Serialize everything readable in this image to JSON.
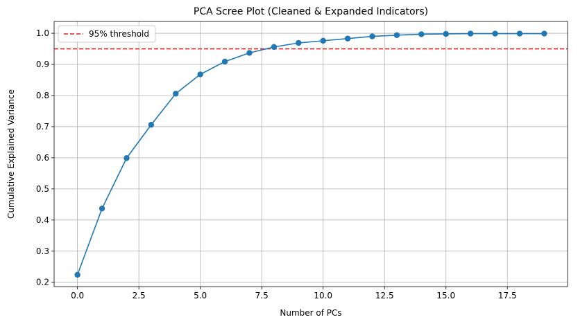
{
  "chart_data": {
    "type": "line",
    "title": "PCA Scree Plot (Cleaned & Expanded Indicators)",
    "xlabel": "Number of PCs",
    "ylabel": "Cumulative Explained Variance",
    "x": [
      0,
      1,
      2,
      3,
      4,
      5,
      6,
      7,
      8,
      9,
      10,
      11,
      12,
      13,
      14,
      15,
      16,
      17,
      18,
      19
    ],
    "series": [
      {
        "values": [
          0.224,
          0.437,
          0.599,
          0.706,
          0.806,
          0.868,
          0.909,
          0.937,
          0.956,
          0.969,
          0.976,
          0.983,
          0.99,
          0.994,
          0.997,
          0.998,
          0.999,
          0.999,
          0.999,
          0.999
        ],
        "color": "#1f77b4",
        "marker": "circle"
      }
    ],
    "threshold": {
      "value": 0.95,
      "label": "95% threshold",
      "color": "#d62728",
      "style": "dashed"
    },
    "xlim": [
      -0.95,
      19.95
    ],
    "ylim": [
      0.186,
      1.038
    ],
    "xticks": [
      0.0,
      2.5,
      5.0,
      7.5,
      10.0,
      12.5,
      15.0,
      17.5
    ],
    "xtick_labels": [
      "0.0",
      "2.5",
      "5.0",
      "7.5",
      "10.0",
      "12.5",
      "15.0",
      "17.5"
    ],
    "yticks": [
      0.2,
      0.3,
      0.4,
      0.5,
      0.6,
      0.7,
      0.8,
      0.9,
      1.0
    ],
    "ytick_labels": [
      "0.2",
      "0.3",
      "0.4",
      "0.5",
      "0.6",
      "0.7",
      "0.8",
      "0.9",
      "1.0"
    ],
    "grid": true,
    "legend": "top-left"
  }
}
